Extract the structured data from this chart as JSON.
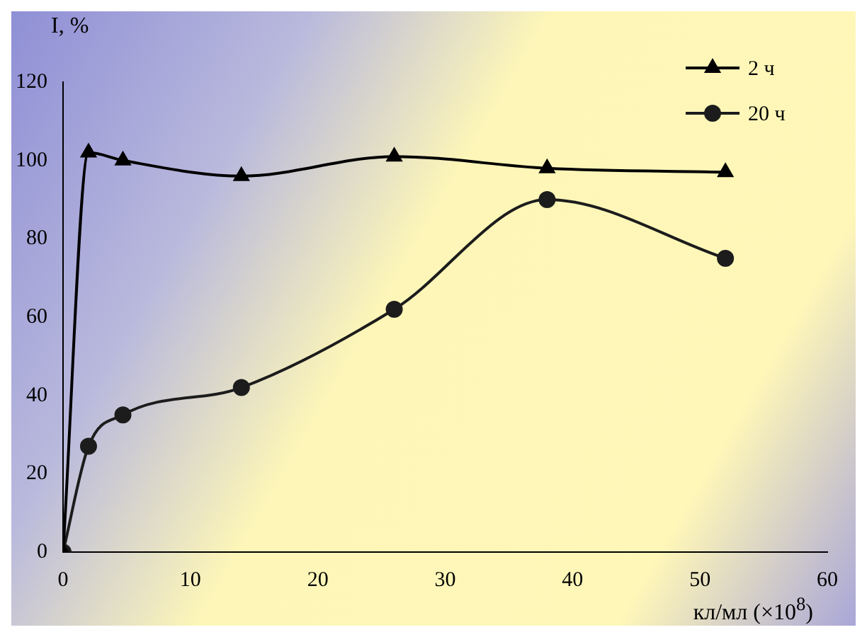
{
  "chart_data": {
    "type": "line",
    "ylabel": "I, %",
    "xlabel": "кл/мл (×10$^{8}$)",
    "x": [
      0,
      2,
      4.7,
      14,
      26,
      38,
      52
    ],
    "series": [
      {
        "name": "2 ч",
        "color": "#000000",
        "marker": "triangle",
        "values": [
          0,
          102,
          100,
          96,
          101,
          98,
          97
        ]
      },
      {
        "name": "20 ч",
        "color": "#1c1c1c",
        "marker": "circle",
        "values": [
          0,
          27,
          35,
          42,
          62,
          90,
          75
        ]
      }
    ],
    "xlim": [
      0,
      60
    ],
    "xticks": [
      0,
      10,
      20,
      30,
      40,
      50,
      60
    ],
    "ylim": [
      0,
      120
    ],
    "yticks": [
      0,
      20,
      40,
      60,
      80,
      100,
      120
    ],
    "grid": false,
    "legend": "top right"
  }
}
